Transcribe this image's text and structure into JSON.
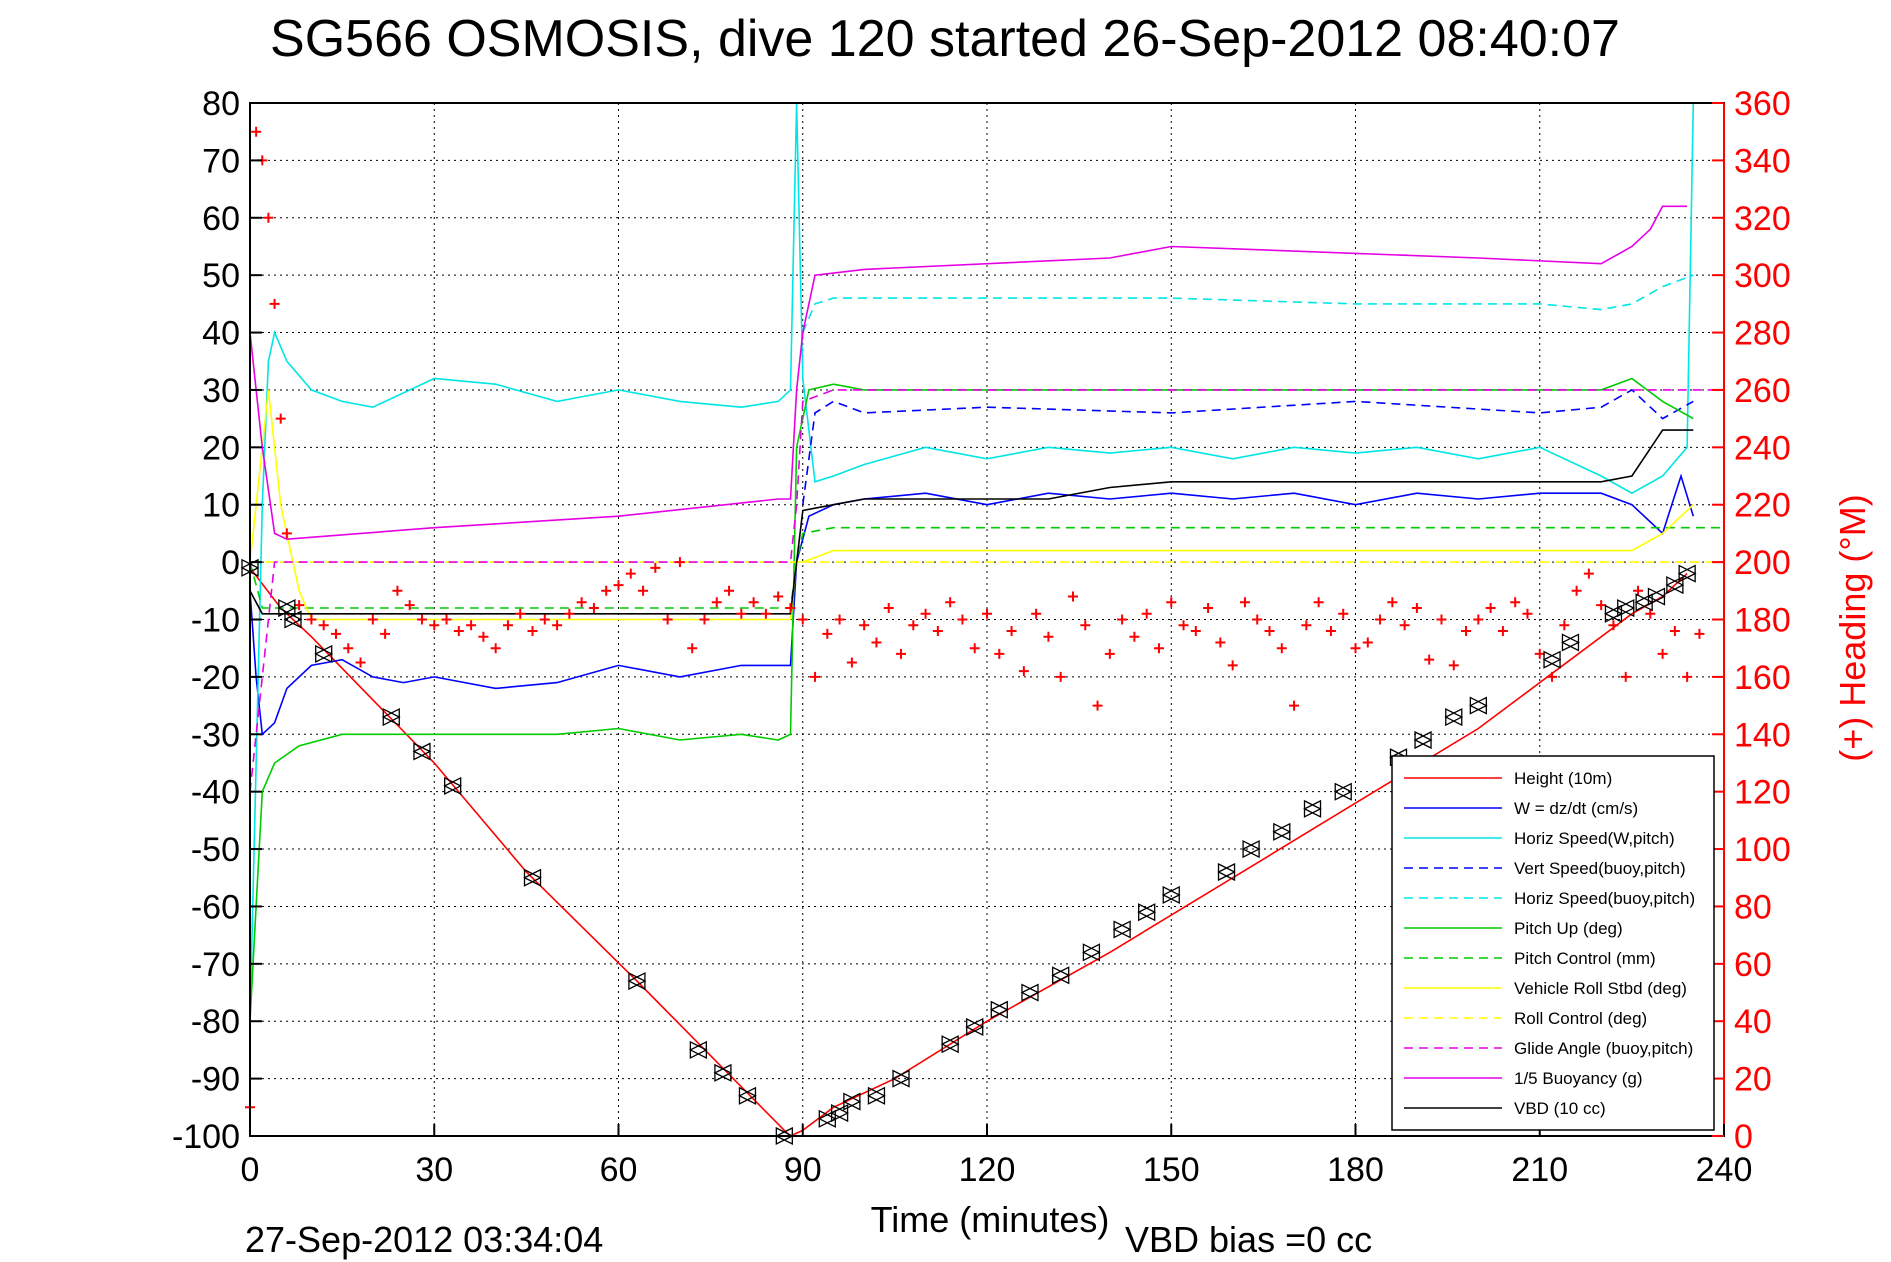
{
  "chart_data": {
    "type": "line",
    "title": "SG566 OSMOSIS, dive 120 started 26-Sep-2012 08:40:07",
    "xlabel": "Time (minutes)",
    "ylabel_right": "(+) Heading (°M)",
    "xlim": [
      0,
      240
    ],
    "ylim": [
      -100,
      80
    ],
    "ylim_right": [
      0,
      360
    ],
    "x_ticks": [
      0,
      30,
      60,
      90,
      120,
      150,
      180,
      210,
      240
    ],
    "y_ticks": [
      80,
      70,
      60,
      50,
      40,
      30,
      20,
      10,
      0,
      -10,
      -20,
      -30,
      -40,
      -50,
      -60,
      -70,
      -80,
      -90,
      -100
    ],
    "y_ticks_right": [
      360,
      340,
      320,
      300,
      280,
      260,
      240,
      220,
      200,
      180,
      160,
      140,
      120,
      100,
      80,
      60,
      40,
      20,
      0
    ],
    "grid": true,
    "legend_position": "bottom-right",
    "footer_left": "27-Sep-2012 03:34:04",
    "footer_right": "VBD bias =0 cc",
    "series": [
      {
        "name": "Height (10m)",
        "color": "#ff0000",
        "dash": "solid",
        "x": [
          0,
          5,
          10,
          20,
          30,
          45,
          63,
          75,
          87,
          88,
          90,
          95,
          105,
          120,
          140,
          160,
          180,
          200,
          215,
          225,
          230,
          234
        ],
        "y": [
          -1,
          -8,
          -13,
          -24,
          -35,
          -54,
          -73,
          -86,
          -99,
          -100,
          -99,
          -95,
          -90,
          -80,
          -68,
          -55,
          -42,
          -29,
          -17,
          -9,
          -6,
          -2
        ]
      },
      {
        "name": "W = dz/dt (cm/s)",
        "color": "#0000ff",
        "dash": "solid",
        "x": [
          0,
          1,
          2,
          4,
          6,
          10,
          15,
          20,
          25,
          30,
          40,
          50,
          60,
          70,
          80,
          88,
          89,
          91,
          95,
          100,
          110,
          120,
          130,
          140,
          150,
          160,
          170,
          180,
          190,
          200,
          210,
          220,
          225,
          230,
          233,
          235
        ],
        "y": [
          -5,
          -20,
          -30,
          -28,
          -22,
          -18,
          -17,
          -20,
          -21,
          -20,
          -22,
          -21,
          -18,
          -20,
          -18,
          -18,
          0,
          8,
          10,
          11,
          12,
          10,
          12,
          11,
          12,
          11,
          12,
          10,
          12,
          11,
          12,
          12,
          10,
          5,
          15,
          8
        ]
      },
      {
        "name": "Horiz Speed(W,pitch)",
        "color": "#00e5e5",
        "dash": "solid",
        "x": [
          0,
          2,
          3,
          4,
          6,
          10,
          15,
          20,
          30,
          40,
          50,
          60,
          70,
          80,
          86,
          88,
          89,
          90,
          92,
          95,
          100,
          110,
          120,
          130,
          140,
          150,
          160,
          170,
          180,
          190,
          200,
          210,
          220,
          225,
          230,
          234,
          235
        ],
        "y": [
          -80,
          10,
          35,
          40,
          35,
          30,
          28,
          27,
          32,
          31,
          28,
          30,
          28,
          27,
          28,
          30,
          80,
          32,
          14,
          15,
          17,
          20,
          18,
          20,
          19,
          20,
          18,
          20,
          19,
          20,
          18,
          20,
          15,
          12,
          15,
          20,
          80
        ]
      },
      {
        "name": "Vert Speed(buoy,pitch)",
        "color": "#0000ff",
        "dash": "dashed",
        "x": [
          90,
          92,
          95,
          100,
          120,
          150,
          180,
          210,
          220,
          225,
          230,
          235
        ],
        "y": [
          10,
          26,
          28,
          26,
          27,
          26,
          28,
          26,
          27,
          30,
          25,
          28
        ]
      },
      {
        "name": "Horiz Speed(buoy,pitch)",
        "color": "#00e5e5",
        "dash": "dashed",
        "x": [
          90,
          92,
          95,
          100,
          120,
          150,
          180,
          210,
          220,
          225,
          230,
          235
        ],
        "y": [
          40,
          45,
          46,
          46,
          46,
          46,
          45,
          45,
          44,
          45,
          48,
          50
        ]
      },
      {
        "name": "Pitch Up (deg)",
        "color": "#00cc00",
        "dash": "solid",
        "x": [
          0,
          1,
          2,
          4,
          8,
          15,
          20,
          30,
          40,
          50,
          60,
          70,
          80,
          86,
          88,
          89,
          91,
          95,
          100,
          120,
          150,
          180,
          210,
          220,
          225,
          230,
          235
        ],
        "y": [
          -80,
          -60,
          -40,
          -35,
          -32,
          -30,
          -30,
          -30,
          -30,
          -30,
          -29,
          -31,
          -30,
          -31,
          -30,
          20,
          30,
          31,
          30,
          30,
          30,
          30,
          30,
          30,
          32,
          28,
          25
        ]
      },
      {
        "name": "Pitch Control (mm)",
        "color": "#00cc00",
        "dash": "dashed",
        "x": [
          0,
          2,
          3,
          4,
          88,
          89,
          90,
          95,
          100,
          240
        ],
        "y": [
          0,
          -8,
          -8,
          -8,
          -8,
          0,
          5,
          6,
          6,
          6
        ]
      },
      {
        "name": "Vehicle Roll Stbd (deg)",
        "color": "#ffff00",
        "dash": "solid",
        "x": [
          0,
          2,
          3,
          5,
          8,
          10,
          20,
          30,
          40,
          50,
          60,
          70,
          80,
          88,
          89,
          90,
          95,
          100,
          120,
          150,
          180,
          210,
          220,
          225,
          230,
          235
        ],
        "y": [
          0,
          20,
          30,
          10,
          -5,
          -10,
          -10,
          -10,
          -10,
          -10,
          -10,
          -10,
          -10,
          -10,
          0,
          0,
          2,
          2,
          2,
          2,
          2,
          2,
          2,
          2,
          5,
          10
        ]
      },
      {
        "name": "Roll Control (deg)",
        "color": "#ffff00",
        "dash": "dashed",
        "x": [
          0,
          240
        ],
        "y": [
          0,
          0
        ]
      },
      {
        "name": "Glide Angle (buoy,pitch)",
        "color": "#e600e6",
        "dash": "dashed",
        "x": [
          0,
          2,
          4,
          88,
          89,
          90,
          95,
          100,
          240
        ],
        "y": [
          -40,
          -20,
          0,
          0,
          10,
          28,
          30,
          30,
          30
        ]
      },
      {
        "name": "1/5 Buoyancy (g)",
        "color": "#e600e6",
        "dash": "solid",
        "x": [
          0,
          2,
          4,
          6,
          30,
          60,
          86,
          88,
          89,
          90,
          92,
          100,
          140,
          150,
          200,
          220,
          225,
          228,
          230,
          234
        ],
        "y": [
          40,
          20,
          5,
          4,
          6,
          8,
          11,
          11,
          30,
          40,
          50,
          51,
          53,
          55,
          53,
          52,
          55,
          58,
          62,
          62
        ]
      },
      {
        "name": "VBD (10 cc)",
        "color": "#000000",
        "dash": "solid",
        "x": [
          0,
          2,
          5,
          88,
          89,
          90,
          95,
          100,
          130,
          140,
          150,
          200,
          220,
          225,
          230,
          235
        ],
        "y": [
          -5,
          -9,
          -9,
          -9,
          0,
          9,
          10,
          11,
          11,
          13,
          14,
          14,
          14,
          15,
          23,
          23
        ]
      }
    ],
    "heading_series": {
      "name": "Heading",
      "color": "#ff0000",
      "marker": "+",
      "x": [
        0,
        1,
        2,
        3,
        4,
        5,
        6,
        8,
        10,
        12,
        14,
        16,
        18,
        20,
        22,
        24,
        26,
        28,
        30,
        32,
        34,
        36,
        38,
        40,
        42,
        44,
        46,
        48,
        50,
        52,
        54,
        56,
        58,
        60,
        62,
        64,
        66,
        68,
        70,
        72,
        74,
        76,
        78,
        80,
        82,
        84,
        86,
        88,
        90,
        92,
        94,
        96,
        98,
        100,
        102,
        104,
        106,
        108,
        110,
        112,
        114,
        116,
        118,
        120,
        122,
        124,
        126,
        128,
        130,
        132,
        134,
        136,
        138,
        140,
        142,
        144,
        146,
        148,
        150,
        152,
        154,
        156,
        158,
        160,
        162,
        164,
        166,
        168,
        170,
        172,
        174,
        176,
        178,
        180,
        182,
        184,
        186,
        188,
        190,
        192,
        194,
        196,
        198,
        200,
        202,
        204,
        206,
        208,
        210,
        212,
        214,
        216,
        218,
        220,
        222,
        224,
        226,
        228,
        230,
        232,
        234,
        236
      ],
      "y": [
        10,
        350,
        340,
        320,
        290,
        250,
        210,
        185,
        180,
        178,
        175,
        170,
        165,
        180,
        175,
        190,
        185,
        180,
        178,
        180,
        176,
        178,
        174,
        170,
        178,
        182,
        176,
        180,
        178,
        182,
        186,
        184,
        190,
        192,
        196,
        190,
        198,
        180,
        200,
        170,
        180,
        186,
        190,
        182,
        186,
        182,
        188,
        184,
        180,
        160,
        175,
        180,
        165,
        178,
        172,
        184,
        168,
        178,
        182,
        176,
        186,
        180,
        170,
        182,
        168,
        176,
        162,
        182,
        174,
        160,
        188,
        178,
        150,
        168,
        180,
        174,
        182,
        170,
        186,
        178,
        176,
        184,
        172,
        164,
        186,
        180,
        176,
        170,
        150,
        178,
        186,
        176,
        182,
        170,
        172,
        180,
        186,
        178,
        184,
        166,
        180,
        164,
        176,
        180,
        184,
        176,
        186,
        182,
        168,
        160,
        178,
        190,
        196,
        185,
        178,
        160,
        190,
        182,
        168,
        176,
        160,
        175
      ]
    },
    "markers": {
      "dive_x": [
        0,
        6,
        7,
        12,
        23,
        28,
        33,
        46,
        63,
        73,
        77,
        81,
        87
      ],
      "dive_y": [
        -1,
        -8,
        -10,
        -16,
        -27,
        -33,
        -39,
        -55,
        -73,
        -85,
        -89,
        -93,
        -100
      ],
      "climb_x": [
        94,
        96,
        98,
        102,
        106,
        114,
        118,
        122,
        127,
        132,
        137,
        142,
        146,
        150,
        159,
        163,
        168,
        173,
        178,
        187,
        191,
        196,
        200,
        212,
        215,
        222,
        224,
        227,
        229,
        232,
        234
      ],
      "climb_y": [
        -97,
        -96,
        -94,
        -93,
        -90,
        -84,
        -81,
        -78,
        -75,
        -72,
        -68,
        -64,
        -61,
        -58,
        -54,
        -50,
        -47,
        -43,
        -40,
        -34,
        -31,
        -27,
        -25,
        -17,
        -14,
        -9,
        -8,
        -7,
        -6,
        -4,
        -2
      ]
    }
  }
}
